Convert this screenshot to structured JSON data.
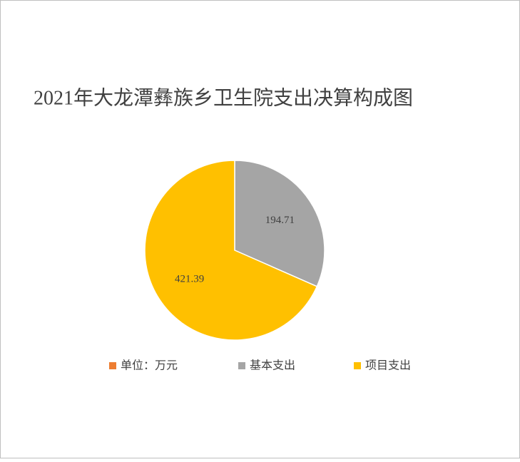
{
  "chart_data": {
    "type": "pie",
    "title": "2021年大龙潭彝族乡卫生院支出决算构成图",
    "categories": [
      "单位：万元",
      "基本支出",
      "项目支出"
    ],
    "values": [
      null,
      194.71,
      421.39
    ],
    "colors": [
      "#ed7d31",
      "#a5a5a5",
      "#ffc000"
    ],
    "legend": "bottom"
  }
}
